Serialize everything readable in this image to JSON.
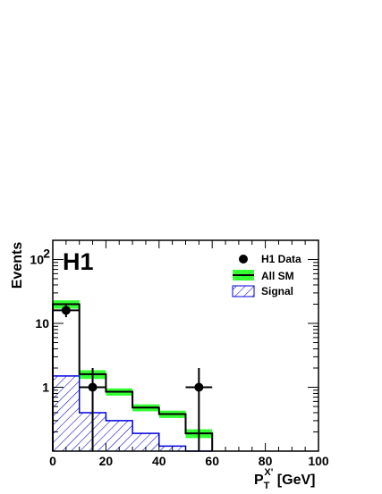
{
  "chart_data": {
    "type": "histogram",
    "tag": "H1",
    "xlabel": {
      "main": "P",
      "sub": "T",
      "sup": "X'",
      "unit": " [GeV]"
    },
    "ylabel": "Events",
    "xlim": [
      0,
      100
    ],
    "ylim": [
      0.1,
      200
    ],
    "yscale": "log",
    "bin_edges": [
      0,
      10,
      20,
      30,
      40,
      50,
      60,
      70,
      80,
      90,
      100
    ],
    "x_ticks": [
      0,
      20,
      40,
      60,
      80,
      100
    ],
    "x_tick_labels": [
      "0",
      "20",
      "40",
      "60",
      "80",
      "100"
    ],
    "y_ticks": [
      1,
      10,
      100
    ],
    "y_tick_labels": [
      {
        "base": "1",
        "sup": ""
      },
      {
        "base": "10",
        "sup": ""
      },
      {
        "base": "10",
        "sup": "2"
      }
    ],
    "series": [
      {
        "name": "All SM",
        "kind": "step",
        "values": [
          20,
          1.6,
          0.85,
          0.48,
          0.38,
          0.19,
          0,
          0,
          0,
          0
        ],
        "band_low": [
          17,
          1.35,
          0.74,
          0.42,
          0.33,
          0.16,
          0,
          0,
          0,
          0
        ],
        "band_high": [
          23,
          1.85,
          0.96,
          0.54,
          0.43,
          0.22,
          0,
          0,
          0,
          0
        ],
        "color": "#000000",
        "band_color": "#33ff33"
      },
      {
        "name": "Signal",
        "kind": "hatched-step",
        "values": [
          1.5,
          0.4,
          0.3,
          0.19,
          0.12,
          0.1,
          0,
          0,
          0,
          0
        ],
        "color": "#0000dd"
      },
      {
        "name": "H1 Data",
        "kind": "points",
        "x": [
          5,
          15,
          55
        ],
        "y": [
          16,
          1,
          1
        ],
        "y_err_low": [
          3.5,
          0.9,
          0.9
        ],
        "y_err_high": [
          4.5,
          1.0,
          1.0
        ],
        "x_err": [
          5,
          5,
          5
        ],
        "color": "#000000"
      }
    ],
    "legend_position": "top-right",
    "grid": false
  }
}
